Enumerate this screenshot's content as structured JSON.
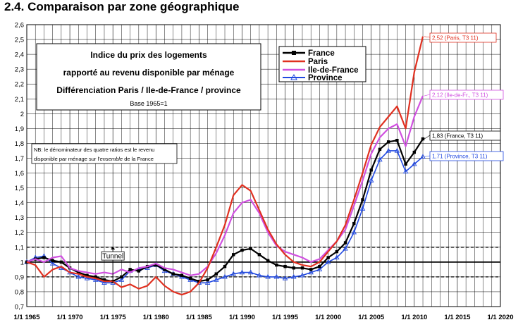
{
  "section_title": "2.4. Comparaison par zone géographique",
  "chart_data": {
    "type": "line",
    "title_lines": [
      "Indice du prix des logements",
      "rapporté au revenu disponible par ménage",
      "Différenciation Paris / Ile-de-France / province"
    ],
    "base_note": "Base 1965=1",
    "nb_note_line1": "NB: le dénominateur des quatre ratios est le revenu",
    "nb_note_line2_pre": "disponible par ménage sur l'",
    "nb_note_line2_em": "ensemble",
    "nb_note_line2_post": " de la France",
    "tunnel_label": "Tunnel",
    "xlim": [
      1965,
      2020
    ],
    "ylim": [
      0.7,
      2.6
    ],
    "x_ticks": [
      1965,
      1970,
      1975,
      1980,
      1985,
      1990,
      1995,
      2000,
      2005,
      2010,
      2015,
      2020
    ],
    "x_tick_labels": [
      "1/1 1965",
      "1/1 1970",
      "1/1 1975",
      "1/1 1980",
      "1/1 1985",
      "1/1 1990",
      "1/1 1995",
      "1/1 2000",
      "1/1 2005",
      "1/1 2010",
      "1/1 2015",
      "1/1 2020"
    ],
    "y_ticks": [
      0.7,
      0.8,
      0.9,
      1.0,
      1.1,
      1.2,
      1.3,
      1.4,
      1.5,
      1.6,
      1.7,
      1.8,
      1.9,
      2.0,
      2.1,
      2.2,
      2.3,
      2.4,
      2.5,
      2.6
    ],
    "y_tick_labels": [
      "0,7",
      "0,8",
      "0,9",
      "1",
      "1,1",
      "1,2",
      "1,3",
      "1,4",
      "1,5",
      "1,6",
      "1,7",
      "1,8",
      "1,9",
      "2",
      "2,1",
      "2,2",
      "2,3",
      "2,4",
      "2,5",
      "2,6"
    ],
    "reference_lines": [
      0.9,
      1.0,
      1.1
    ],
    "tunnel_x": 1975,
    "series": [
      {
        "name": "France",
        "color": "#000000",
        "marker": "square",
        "end_label": "1,83 (France, T3 11)",
        "label_color": "#000000",
        "points": [
          [
            1965,
            1.0
          ],
          [
            1966,
            1.02
          ],
          [
            1967,
            1.03
          ],
          [
            1968,
            1.01
          ],
          [
            1969,
            1.0
          ],
          [
            1970,
            0.96
          ],
          [
            1971,
            0.93
          ],
          [
            1972,
            0.91
          ],
          [
            1973,
            0.9
          ],
          [
            1974,
            0.88
          ],
          [
            1975,
            0.87
          ],
          [
            1976,
            0.9
          ],
          [
            1977,
            0.95
          ],
          [
            1978,
            0.94
          ],
          [
            1979,
            0.97
          ],
          [
            1980,
            0.98
          ],
          [
            1981,
            0.95
          ],
          [
            1982,
            0.92
          ],
          [
            1983,
            0.91
          ],
          [
            1984,
            0.89
          ],
          [
            1985,
            0.87
          ],
          [
            1986,
            0.88
          ],
          [
            1987,
            0.92
          ],
          [
            1988,
            0.97
          ],
          [
            1989,
            1.05
          ],
          [
            1990,
            1.08
          ],
          [
            1991,
            1.09
          ],
          [
            1992,
            1.05
          ],
          [
            1993,
            1.01
          ],
          [
            1994,
            0.98
          ],
          [
            1995,
            0.97
          ],
          [
            1996,
            0.96
          ],
          [
            1997,
            0.96
          ],
          [
            1998,
            0.95
          ],
          [
            1999,
            0.97
          ],
          [
            2000,
            1.03
          ],
          [
            2001,
            1.07
          ],
          [
            2002,
            1.13
          ],
          [
            2003,
            1.26
          ],
          [
            2004,
            1.42
          ],
          [
            2005,
            1.62
          ],
          [
            2006,
            1.76
          ],
          [
            2007,
            1.81
          ],
          [
            2008,
            1.82
          ],
          [
            2009,
            1.66
          ],
          [
            2010,
            1.74
          ],
          [
            2011,
            1.83
          ]
        ]
      },
      {
        "name": "Paris",
        "color": "#e03020",
        "marker": "none",
        "end_label": "2,52 (Paris, T3 11)",
        "label_color": "#e03020",
        "points": [
          [
            1965,
            1.0
          ],
          [
            1966,
            0.98
          ],
          [
            1967,
            0.9
          ],
          [
            1968,
            0.95
          ],
          [
            1969,
            0.97
          ],
          [
            1970,
            0.93
          ],
          [
            1971,
            0.92
          ],
          [
            1972,
            0.9
          ],
          [
            1973,
            0.89
          ],
          [
            1974,
            0.87
          ],
          [
            1975,
            0.87
          ],
          [
            1976,
            0.83
          ],
          [
            1977,
            0.85
          ],
          [
            1978,
            0.82
          ],
          [
            1979,
            0.84
          ],
          [
            1980,
            0.9
          ],
          [
            1981,
            0.84
          ],
          [
            1982,
            0.8
          ],
          [
            1983,
            0.78
          ],
          [
            1984,
            0.8
          ],
          [
            1985,
            0.86
          ],
          [
            1986,
            0.96
          ],
          [
            1987,
            1.1
          ],
          [
            1988,
            1.25
          ],
          [
            1989,
            1.45
          ],
          [
            1990,
            1.52
          ],
          [
            1991,
            1.48
          ],
          [
            1992,
            1.35
          ],
          [
            1993,
            1.22
          ],
          [
            1994,
            1.12
          ],
          [
            1995,
            1.05
          ],
          [
            1996,
            1.0
          ],
          [
            1997,
            0.98
          ],
          [
            1998,
            0.97
          ],
          [
            1999,
            1.0
          ],
          [
            2000,
            1.07
          ],
          [
            2001,
            1.14
          ],
          [
            2002,
            1.25
          ],
          [
            2003,
            1.42
          ],
          [
            2004,
            1.6
          ],
          [
            2005,
            1.79
          ],
          [
            2006,
            1.91
          ],
          [
            2007,
            1.98
          ],
          [
            2008,
            2.05
          ],
          [
            2009,
            1.9
          ],
          [
            2010,
            2.28
          ],
          [
            2011,
            2.52
          ]
        ]
      },
      {
        "name": "Ile-de-France",
        "color": "#d050e0",
        "marker": "none",
        "end_label": "2,12 (Ile-de-Fr., T3 11)",
        "label_color": "#d050e0",
        "points": [
          [
            1965,
            1.0
          ],
          [
            1966,
            1.02
          ],
          [
            1967,
            1.0
          ],
          [
            1968,
            1.03
          ],
          [
            1969,
            1.04
          ],
          [
            1970,
            0.96
          ],
          [
            1971,
            0.94
          ],
          [
            1972,
            0.93
          ],
          [
            1973,
            0.92
          ],
          [
            1974,
            0.93
          ],
          [
            1975,
            0.92
          ],
          [
            1976,
            0.95
          ],
          [
            1977,
            0.93
          ],
          [
            1978,
            0.96
          ],
          [
            1979,
            0.97
          ],
          [
            1980,
            0.99
          ],
          [
            1981,
            0.96
          ],
          [
            1982,
            0.95
          ],
          [
            1983,
            0.93
          ],
          [
            1984,
            0.91
          ],
          [
            1985,
            0.92
          ],
          [
            1986,
            0.97
          ],
          [
            1987,
            1.06
          ],
          [
            1988,
            1.18
          ],
          [
            1989,
            1.33
          ],
          [
            1990,
            1.4
          ],
          [
            1991,
            1.42
          ],
          [
            1992,
            1.33
          ],
          [
            1993,
            1.2
          ],
          [
            1994,
            1.11
          ],
          [
            1995,
            1.07
          ],
          [
            1996,
            1.05
          ],
          [
            1997,
            1.03
          ],
          [
            1998,
            1.0
          ],
          [
            1999,
            1.02
          ],
          [
            2000,
            1.08
          ],
          [
            2001,
            1.14
          ],
          [
            2002,
            1.22
          ],
          [
            2003,
            1.38
          ],
          [
            2004,
            1.55
          ],
          [
            2005,
            1.73
          ],
          [
            2006,
            1.84
          ],
          [
            2007,
            1.9
          ],
          [
            2008,
            1.93
          ],
          [
            2009,
            1.78
          ],
          [
            2010,
            1.98
          ],
          [
            2011,
            2.12
          ]
        ]
      },
      {
        "name": "Province",
        "color": "#2048e0",
        "marker": "triangle",
        "end_label": "1,71 (Province, T3 11)",
        "label_color": "#2048e0",
        "points": [
          [
            1965,
            1.0
          ],
          [
            1966,
            1.03
          ],
          [
            1967,
            1.04
          ],
          [
            1968,
            0.99
          ],
          [
            1969,
            0.96
          ],
          [
            1970,
            0.93
          ],
          [
            1971,
            0.9
          ],
          [
            1972,
            0.89
          ],
          [
            1973,
            0.88
          ],
          [
            1974,
            0.86
          ],
          [
            1975,
            0.86
          ],
          [
            1976,
            0.88
          ],
          [
            1977,
            0.94
          ],
          [
            1978,
            0.95
          ],
          [
            1979,
            0.96
          ],
          [
            1980,
            0.98
          ],
          [
            1981,
            0.94
          ],
          [
            1982,
            0.92
          ],
          [
            1983,
            0.9
          ],
          [
            1984,
            0.88
          ],
          [
            1985,
            0.86
          ],
          [
            1986,
            0.86
          ],
          [
            1987,
            0.88
          ],
          [
            1988,
            0.9
          ],
          [
            1989,
            0.92
          ],
          [
            1990,
            0.93
          ],
          [
            1991,
            0.93
          ],
          [
            1992,
            0.91
          ],
          [
            1993,
            0.9
          ],
          [
            1994,
            0.9
          ],
          [
            1995,
            0.89
          ],
          [
            1996,
            0.9
          ],
          [
            1997,
            0.91
          ],
          [
            1998,
            0.93
          ],
          [
            1999,
            0.95
          ],
          [
            2000,
            1.0
          ],
          [
            2001,
            1.03
          ],
          [
            2002,
            1.09
          ],
          [
            2003,
            1.2
          ],
          [
            2004,
            1.36
          ],
          [
            2005,
            1.55
          ],
          [
            2006,
            1.69
          ],
          [
            2007,
            1.75
          ],
          [
            2008,
            1.75
          ],
          [
            2009,
            1.61
          ],
          [
            2010,
            1.66
          ],
          [
            2011,
            1.71
          ]
        ]
      }
    ]
  }
}
